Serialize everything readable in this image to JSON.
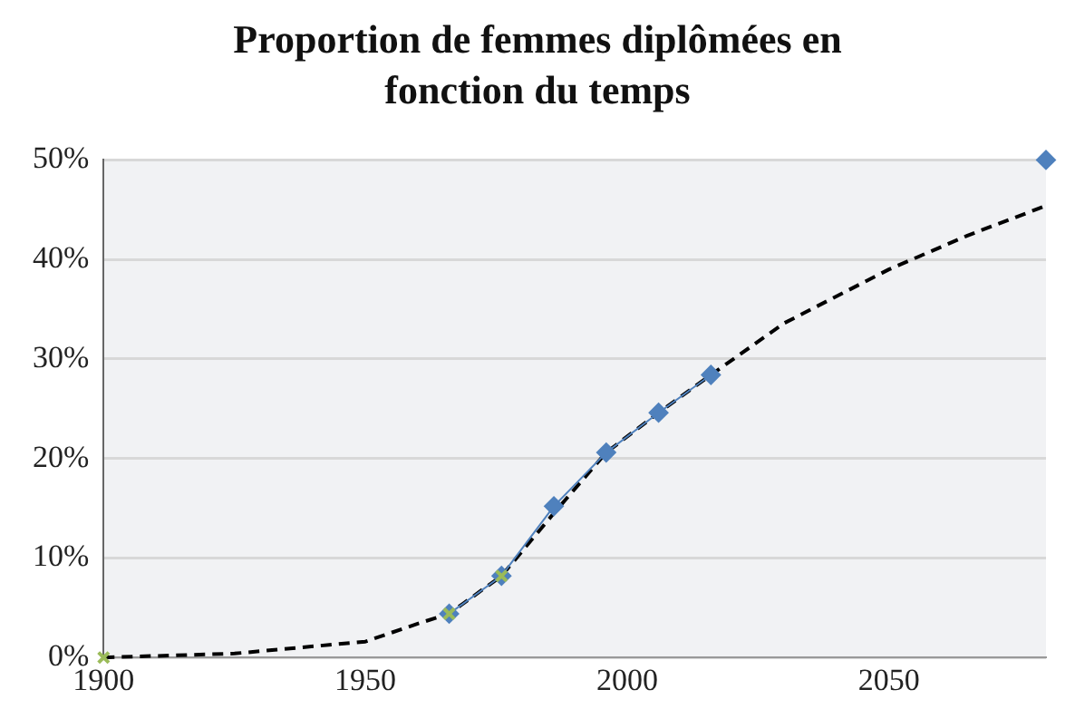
{
  "chart_data": {
    "type": "line",
    "title": "Proportion de femmes diplômées en fonction du temps",
    "xlim": [
      1900,
      2080
    ],
    "xticks": [
      1900,
      1950,
      2000,
      2050
    ],
    "ylim": [
      0,
      50
    ],
    "yticks": [
      {
        "value": 0,
        "label": "0%"
      },
      {
        "value": 10,
        "label": "10%"
      },
      {
        "value": 20,
        "label": "20%"
      },
      {
        "value": 30,
        "label": "30%"
      },
      {
        "value": 40,
        "label": "40%"
      },
      {
        "value": 50,
        "label": "50%"
      }
    ],
    "grid": "y",
    "legend": false,
    "series": [
      {
        "type": "line",
        "color": "#000000",
        "marker": "none",
        "line_style": "dashed",
        "x": [
          1900,
          1925,
          1950,
          1960,
          1966,
          1976,
          1986,
          1996,
          2006,
          2016,
          2030,
          2050,
          2065,
          2080
        ],
        "values": [
          0,
          0.4,
          1.6,
          3.4,
          4.4,
          8.2,
          14.5,
          20.6,
          24.6,
          28.4,
          33.6,
          39,
          42.4,
          45.4
        ]
      },
      {
        "type": "line",
        "color": "#4f81bd",
        "marker": "diamond",
        "line_style": "solid",
        "x": [
          1966,
          1976,
          1986,
          1996,
          2006,
          2016
        ],
        "values": [
          4.4,
          8.2,
          15.2,
          20.6,
          24.6,
          28.4
        ]
      },
      {
        "type": "scatter",
        "color": "#4f81bd",
        "marker": "diamond",
        "x": [
          2080
        ],
        "values": [
          50
        ]
      },
      {
        "type": "scatter",
        "color": "#9bbb59",
        "marker": "cross",
        "x": [
          1900,
          1966,
          1976
        ],
        "values": [
          0,
          4.4,
          8.2
        ]
      }
    ]
  }
}
